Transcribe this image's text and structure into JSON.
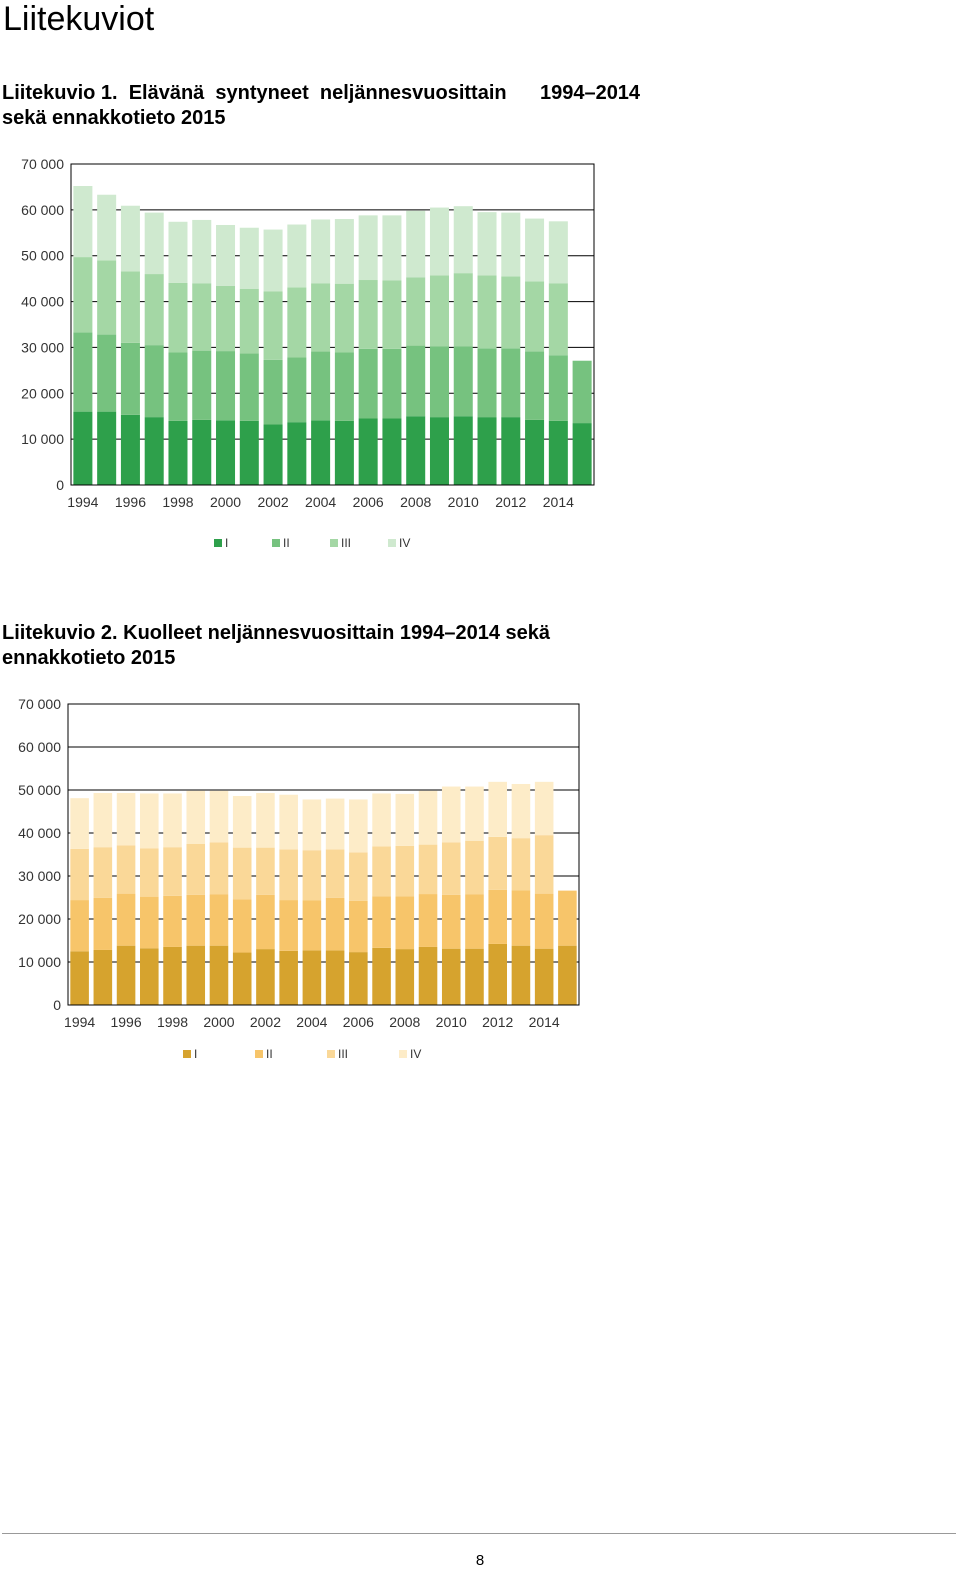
{
  "page": {
    "heading": "Liitekuviot",
    "page_number": "8"
  },
  "figures": [
    {
      "caption_line1": "Liitekuvio 1.  Elävänä  syntyneet  neljännesvuosittain      1994–2014",
      "caption_line2": "sekä ennakkotieto 2015"
    },
    {
      "caption_line1": "Liitekuvio 2. Kuolleet neljännesvuosittain 1994–2014 sekä",
      "caption_line2": "ennakkotieto 2015"
    }
  ],
  "chart_data": [
    {
      "type": "bar",
      "stacked": true,
      "categories": [
        "1994",
        "1995",
        "1996",
        "1997",
        "1998",
        "1999",
        "2000",
        "2001",
        "2002",
        "2003",
        "2004",
        "2005",
        "2006",
        "2007",
        "2008",
        "2009",
        "2010",
        "2011",
        "2012",
        "2013",
        "2014",
        "2015"
      ],
      "x_tick_labels": [
        "1994",
        "1996",
        "1998",
        "2000",
        "2002",
        "2004",
        "2006",
        "2008",
        "2010",
        "2012",
        "2014"
      ],
      "y_ticks": [
        0,
        10000,
        20000,
        30000,
        40000,
        50000,
        60000,
        70000
      ],
      "y_tick_labels": [
        "0",
        "10 000",
        "20 000",
        "30 000",
        "40 000",
        "50 000",
        "60 000",
        "70 000"
      ],
      "ylim": [
        0,
        70000
      ],
      "grid": true,
      "legend_position": "bottom",
      "series": [
        {
          "name": "I",
          "color": "#2ea04b",
          "values": [
            16000,
            16000,
            15300,
            14800,
            14000,
            14200,
            14100,
            14000,
            13200,
            13700,
            14100,
            14000,
            14500,
            14500,
            15000,
            14800,
            15000,
            14800,
            14800,
            14200,
            14000,
            13500
          ]
        },
        {
          "name": "II",
          "color": "#76c27f",
          "values": [
            17300,
            16800,
            15700,
            15700,
            14900,
            15100,
            15100,
            14700,
            14100,
            14100,
            15000,
            14900,
            15200,
            15200,
            15400,
            15400,
            15200,
            15000,
            15000,
            14900,
            14300,
            13600
          ]
        },
        {
          "name": "III",
          "color": "#a4d7a5",
          "values": [
            16400,
            16200,
            15600,
            15500,
            15200,
            14700,
            14200,
            14100,
            14900,
            15300,
            14900,
            15000,
            15000,
            14900,
            14900,
            15500,
            16000,
            15900,
            15700,
            15300,
            15700,
            0
          ]
        },
        {
          "name": "IV",
          "color": "#cfe9cf",
          "values": [
            15500,
            14300,
            14300,
            13400,
            13300,
            13800,
            13300,
            13300,
            13500,
            13700,
            13900,
            14100,
            14100,
            14200,
            14500,
            14800,
            14600,
            13800,
            13900,
            13700,
            13500,
            0
          ]
        }
      ]
    },
    {
      "type": "bar",
      "stacked": true,
      "categories": [
        "1994",
        "1995",
        "1996",
        "1997",
        "1998",
        "1999",
        "2000",
        "2001",
        "2002",
        "2003",
        "2004",
        "2005",
        "2006",
        "2007",
        "2008",
        "2009",
        "2010",
        "2011",
        "2012",
        "2013",
        "2014",
        "2015"
      ],
      "x_tick_labels": [
        "1994",
        "1996",
        "1998",
        "2000",
        "2002",
        "2004",
        "2006",
        "2008",
        "2010",
        "2012",
        "2014"
      ],
      "y_ticks": [
        0,
        10000,
        20000,
        30000,
        40000,
        50000,
        60000,
        70000
      ],
      "y_tick_labels": [
        "0",
        "10 000",
        "20 000",
        "30 000",
        "40 000",
        "50 000",
        "60 000",
        "70 000"
      ],
      "ylim": [
        0,
        70000
      ],
      "grid": true,
      "legend_position": "bottom",
      "series": [
        {
          "name": "I",
          "color": "#d6a32e",
          "values": [
            12500,
            12800,
            13800,
            13200,
            13500,
            13800,
            13800,
            12200,
            13000,
            12600,
            12700,
            12700,
            12300,
            13300,
            13000,
            13500,
            13100,
            13100,
            14200,
            13800,
            13100,
            13800
          ]
        },
        {
          "name": "II",
          "color": "#f7c56a",
          "values": [
            11900,
            12100,
            12100,
            12000,
            11900,
            11800,
            11900,
            12400,
            12600,
            11800,
            11600,
            12200,
            11900,
            12000,
            12300,
            12300,
            12500,
            12600,
            12600,
            12900,
            12800,
            12800
          ]
        },
        {
          "name": "III",
          "color": "#fad898",
          "values": [
            11900,
            11800,
            11200,
            11200,
            11300,
            11900,
            12100,
            12000,
            11000,
            11800,
            11700,
            11300,
            11300,
            11600,
            11700,
            11500,
            12200,
            12500,
            12300,
            12100,
            13600,
            0
          ]
        },
        {
          "name": "IV",
          "color": "#fdecc8",
          "values": [
            11800,
            12600,
            12200,
            12800,
            12500,
            12300,
            12000,
            12000,
            12700,
            12700,
            11800,
            11800,
            12300,
            12300,
            12100,
            12500,
            13000,
            12600,
            12800,
            12600,
            12400,
            0
          ]
        }
      ]
    }
  ]
}
